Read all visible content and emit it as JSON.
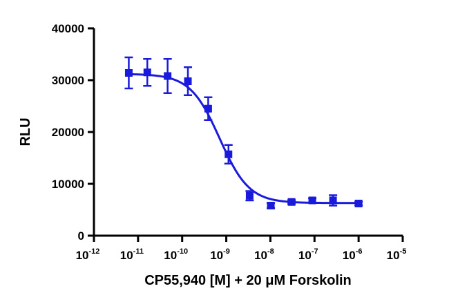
{
  "chart_data": {
    "type": "scatter",
    "title": "",
    "xlabel": "CP55,940 [M] + 20 μM Forskolin",
    "ylabel": "RLU",
    "x_scale": "log10",
    "xlim_log10": [
      -12,
      -5
    ],
    "ylim": [
      0,
      40000
    ],
    "x_ticks": [
      {
        "base": "10",
        "exp": "-12",
        "value": -12
      },
      {
        "base": "10",
        "exp": "-11",
        "value": -11
      },
      {
        "base": "10",
        "exp": "-10",
        "value": -10
      },
      {
        "base": "10",
        "exp": "-9",
        "value": -9
      },
      {
        "base": "10",
        "exp": "-8",
        "value": -8
      },
      {
        "base": "10",
        "exp": "-7",
        "value": -7
      },
      {
        "base": "10",
        "exp": "-6",
        "value": -6
      },
      {
        "base": "10",
        "exp": "-5",
        "value": -5
      }
    ],
    "y_ticks": [
      {
        "label": "0",
        "value": 0
      },
      {
        "label": "10000",
        "value": 10000
      },
      {
        "label": "20000",
        "value": 20000
      },
      {
        "label": "30000",
        "value": 30000
      },
      {
        "label": "40000",
        "value": 40000
      }
    ],
    "grid": false,
    "series": [
      {
        "name": "CP55,940",
        "color": "#1a1adc",
        "marker": "square",
        "points": [
          {
            "log_x": -11.21,
            "y": 31400,
            "err": 3000
          },
          {
            "log_x": -10.79,
            "y": 31500,
            "err": 2600
          },
          {
            "log_x": -10.33,
            "y": 30800,
            "err": 3300
          },
          {
            "log_x": -9.87,
            "y": 29800,
            "err": 2700
          },
          {
            "log_x": -9.41,
            "y": 24500,
            "err": 2200
          },
          {
            "log_x": -8.95,
            "y": 15700,
            "err": 1800
          },
          {
            "log_x": -8.47,
            "y": 7700,
            "err": 900
          },
          {
            "log_x": -7.99,
            "y": 5800,
            "err": 500
          },
          {
            "log_x": -7.52,
            "y": 6500,
            "err": 350
          },
          {
            "log_x": -7.05,
            "y": 6800,
            "err": 400
          },
          {
            "log_x": -6.58,
            "y": 6800,
            "err": 1000
          },
          {
            "log_x": -6.0,
            "y": 6200,
            "err": 350
          }
        ],
        "fit": {
          "model": "four-parameter logistic",
          "top": 31200,
          "bottom": 6300,
          "log_ec50": -9.15,
          "hill_slope": -1.3,
          "log_x_range": [
            -11.21,
            -6.0
          ]
        }
      }
    ]
  }
}
